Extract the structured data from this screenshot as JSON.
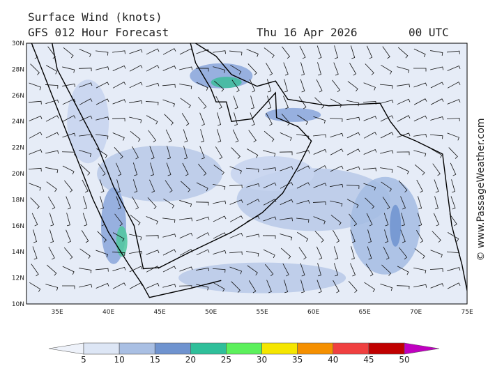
{
  "header": {
    "title": "Surface Wind (knots)",
    "model": "GFS 012 Hour Forecast",
    "date": "Thu 16 Apr 2026",
    "time": "00 UTC"
  },
  "map": {
    "lat_labels": [
      "30N",
      "28N",
      "26N",
      "24N",
      "22N",
      "20N",
      "18N",
      "16N",
      "14N",
      "12N",
      "10N"
    ],
    "lon_labels": [
      "35E",
      "40E",
      "45E",
      "50E",
      "55E",
      "60E",
      "65E",
      "70E",
      "75E"
    ]
  },
  "colorbar": {
    "labels": [
      5,
      10,
      15,
      20,
      25,
      30,
      35,
      40,
      45,
      50
    ]
  },
  "credit": "© www.PassageWeather.com"
}
